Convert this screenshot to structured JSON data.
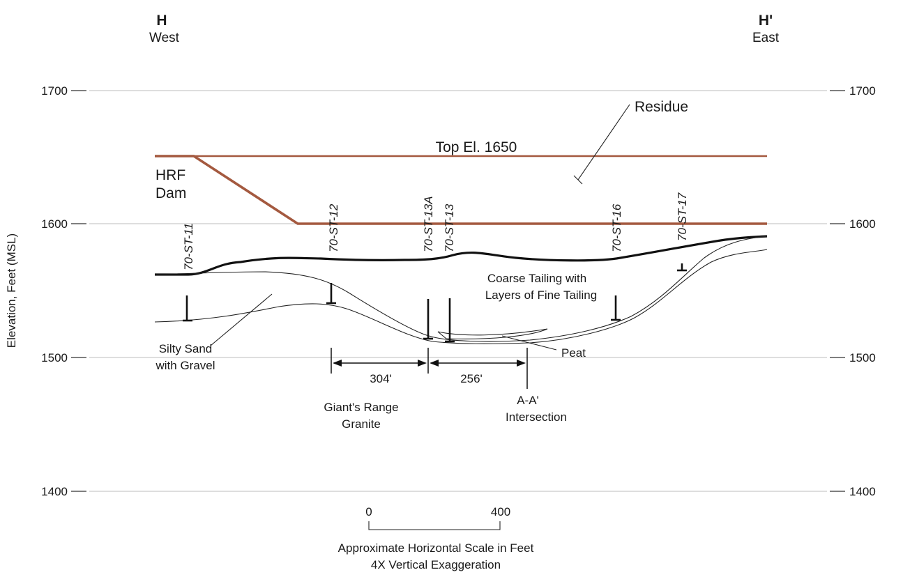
{
  "header": {
    "left_code": "H",
    "left_dir": "West",
    "right_code": "H'",
    "right_dir": "East"
  },
  "axis": {
    "ylabel": "Elevation, Feet (MSL)",
    "ticks": [
      "1700",
      "1600",
      "1500",
      "1400"
    ]
  },
  "labels": {
    "top_el": "Top El. 1650",
    "residue": "Residue",
    "hrf_line1": "HRF",
    "hrf_line2": "Dam",
    "coarse_line1": "Coarse Tailing with",
    "coarse_line2": "Layers of Fine Tailing",
    "silty_line1": "Silty Sand",
    "silty_line2": "with Gravel",
    "peat": "Peat",
    "granite_line1": "Giant's Range",
    "granite_line2": "Granite",
    "aa_line1": "A-A'",
    "aa_line2": "Intersection"
  },
  "borings": [
    "70-ST-11",
    "70-ST-12",
    "70-ST-13A",
    "70-ST-13",
    "70-ST-16",
    "70-ST-17"
  ],
  "dimensions": {
    "left": "304'",
    "right": "256'"
  },
  "scale": {
    "start": "0",
    "end": "400",
    "line1": "Approximate Horizontal Scale in Feet",
    "line2": "4X Vertical Exaggeration"
  }
}
